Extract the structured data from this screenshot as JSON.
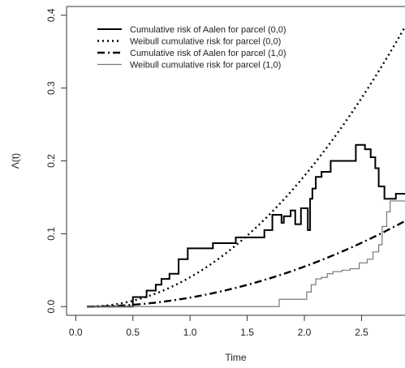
{
  "chart_data": {
    "type": "line",
    "title": "",
    "xlabel": "Time",
    "ylabel": "Λ(t)",
    "xlim": [
      -0.08,
      2.88
    ],
    "ylim": [
      -0.012,
      0.412
    ],
    "x_ticks": [
      {
        "value": 0.0,
        "label": "0.0"
      },
      {
        "value": 0.5,
        "label": "0.5"
      },
      {
        "value": 1.0,
        "label": "1.0"
      },
      {
        "value": 1.5,
        "label": "1.5"
      },
      {
        "value": 2.0,
        "label": "2.0"
      },
      {
        "value": 2.5,
        "label": "2.5"
      }
    ],
    "y_ticks": [
      {
        "value": 0.0,
        "label": "0.0"
      },
      {
        "value": 0.1,
        "label": "0.1"
      },
      {
        "value": 0.2,
        "label": "0.2"
      },
      {
        "value": 0.3,
        "label": "0.3"
      },
      {
        "value": 0.4,
        "label": "0.4"
      }
    ],
    "grid": false,
    "legend_position": "top-left",
    "series": [
      {
        "name": "Cumulative risk of Aalen for parcel (0,0)",
        "style": "solid-thick",
        "color": "#000000",
        "step": true,
        "x": [
          0.1,
          0.5,
          0.5,
          0.62,
          0.7,
          0.75,
          0.82,
          0.9,
          0.98,
          1.2,
          1.4,
          1.65,
          1.72,
          1.8,
          1.82,
          1.88,
          1.92,
          1.97,
          2.03,
          2.05,
          2.07,
          2.1,
          2.15,
          2.23,
          2.45,
          2.53,
          2.58,
          2.62,
          2.65,
          2.7,
          2.8,
          2.88
        ],
        "y": [
          0.0,
          0.004,
          0.013,
          0.022,
          0.03,
          0.038,
          0.045,
          0.065,
          0.08,
          0.087,
          0.095,
          0.105,
          0.126,
          0.115,
          0.124,
          0.132,
          0.113,
          0.135,
          0.105,
          0.148,
          0.162,
          0.178,
          0.185,
          0.2,
          0.222,
          0.216,
          0.205,
          0.19,
          0.165,
          0.148,
          0.155,
          0.155
        ]
      },
      {
        "name": "Weibull cumulative risk for parcel (0,0)",
        "style": "dotted-thick",
        "color": "#000000",
        "step": false,
        "model": {
          "form": "power",
          "t0": 0.1,
          "scale": 0.0497,
          "shape": 2.0
        },
        "x_range": [
          0.1,
          2.88
        ]
      },
      {
        "name": "Cumulative risk of Aalen for parcel (1,0)",
        "style": "dashdot-thick",
        "color": "#000000",
        "step": false,
        "model": {
          "form": "power",
          "t0": 0.1,
          "scale": 0.0152,
          "shape": 2.0
        },
        "x_range": [
          0.1,
          2.88
        ]
      },
      {
        "name": "Weibull cumulative risk for parcel (1,0)",
        "style": "solid-thin",
        "color": "#777777",
        "step": true,
        "x": [
          0.1,
          1.78,
          2.02,
          2.06,
          2.1,
          2.15,
          2.2,
          2.25,
          2.33,
          2.4,
          2.48,
          2.55,
          2.6,
          2.65,
          2.68,
          2.72,
          2.75,
          2.88
        ],
        "y": [
          0.0,
          0.01,
          0.02,
          0.03,
          0.038,
          0.04,
          0.045,
          0.048,
          0.05,
          0.052,
          0.06,
          0.065,
          0.075,
          0.085,
          0.11,
          0.13,
          0.145,
          0.145
        ]
      }
    ]
  }
}
